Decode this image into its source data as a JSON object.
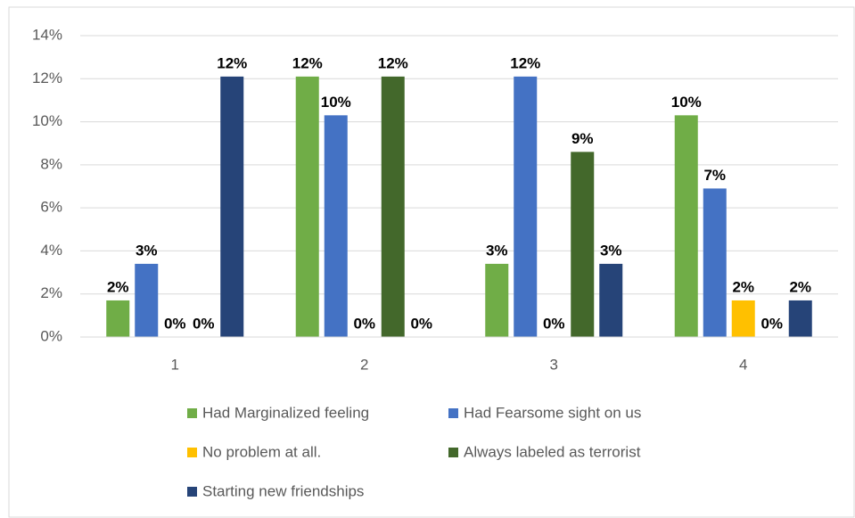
{
  "chart_data": {
    "type": "bar",
    "categories": [
      "1",
      "2",
      "3",
      "4"
    ],
    "series": [
      {
        "name": "Had Marginalized feeling",
        "color": "#70ad47",
        "values": [
          1.7,
          12.1,
          3.4,
          10.3
        ],
        "value_labels": [
          "2%",
          "12%",
          "3%",
          "10%"
        ]
      },
      {
        "name": "Had Fearsome sight on us",
        "color": "#4472c4",
        "values": [
          3.4,
          10.3,
          12.1,
          6.9
        ],
        "value_labels": [
          "3%",
          "10%",
          "12%",
          "7%"
        ]
      },
      {
        "name": "No problem at all.",
        "color": "#ffc000",
        "values": [
          0,
          0,
          0,
          1.7
        ],
        "value_labels": [
          "0%",
          "0%",
          "0%",
          "2%"
        ]
      },
      {
        "name": "Always labeled as terrorist",
        "color": "#43682b",
        "values": [
          0,
          12.1,
          8.6,
          0
        ],
        "value_labels": [
          "0%",
          "12%",
          "9%",
          "0%"
        ]
      },
      {
        "name": "Starting new friendships",
        "color": "#264478",
        "values": [
          12.1,
          0,
          3.4,
          1.7
        ],
        "value_labels": [
          "12%",
          "0%",
          "3%",
          "2%"
        ]
      }
    ],
    "ylim": [
      0,
      14
    ],
    "yticks": [
      {
        "value": 0,
        "label": "0%"
      },
      {
        "value": 2,
        "label": "2%"
      },
      {
        "value": 4,
        "label": "4%"
      },
      {
        "value": 6,
        "label": "6%"
      },
      {
        "value": 8,
        "label": "8%"
      },
      {
        "value": 10,
        "label": "10%"
      },
      {
        "value": 12,
        "label": "12%"
      },
      {
        "value": 14,
        "label": "14%"
      }
    ],
    "grid": true,
    "legend": "bottom"
  }
}
